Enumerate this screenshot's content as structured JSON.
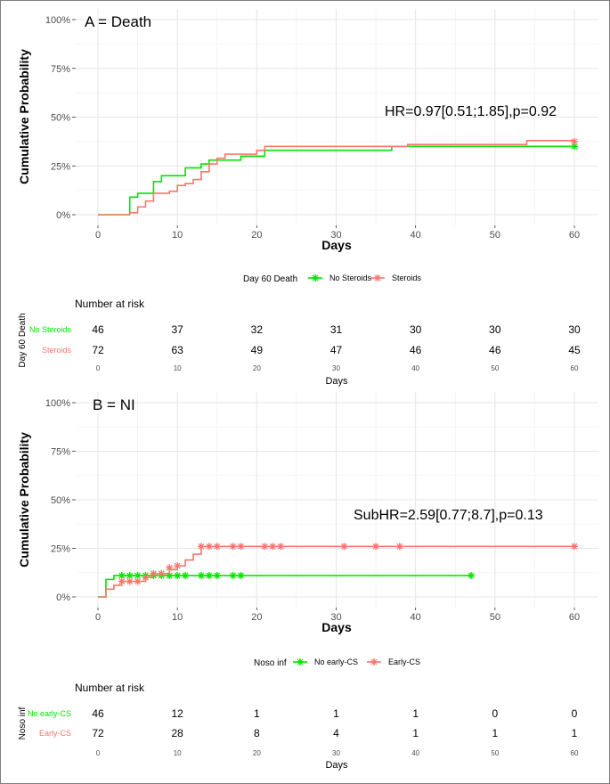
{
  "chart_data": [
    {
      "type": "line",
      "panel_label": "A = Death",
      "annotation": "HR=0.97[0.51;1.85],p=0.92",
      "xlabel": "Days",
      "ylabel": "Cumulative Probability",
      "xlim": [
        0,
        60
      ],
      "ylim": [
        0,
        1
      ],
      "x_ticks": [
        0,
        10,
        20,
        30,
        40,
        50,
        60
      ],
      "y_ticks": [
        "0%",
        "25%",
        "50%",
        "75%",
        "100%"
      ],
      "legend_title": "Day 60 Death",
      "colors": {
        "green": "#00e600",
        "red": "#f8766d"
      },
      "series": [
        {
          "name": "No Steroids",
          "color": "#00e600",
          "steps": [
            [
              0,
              0
            ],
            [
              4,
              0.09
            ],
            [
              5,
              0.11
            ],
            [
              7,
              0.17
            ],
            [
              8,
              0.2
            ],
            [
              11,
              0.24
            ],
            [
              13,
              0.26
            ],
            [
              14,
              0.28
            ],
            [
              18,
              0.3
            ],
            [
              21,
              0.33
            ],
            [
              37,
              0.35
            ],
            [
              60,
              0.35
            ]
          ],
          "censors": [
            [
              60,
              0.35
            ]
          ]
        },
        {
          "name": "Steroids",
          "color": "#f8766d",
          "steps": [
            [
              0,
              0
            ],
            [
              4,
              0.01
            ],
            [
              5,
              0.04
            ],
            [
              6,
              0.07
            ],
            [
              7,
              0.11
            ],
            [
              9,
              0.12
            ],
            [
              10,
              0.15
            ],
            [
              11,
              0.16
            ],
            [
              12,
              0.18
            ],
            [
              13,
              0.22
            ],
            [
              14,
              0.26
            ],
            [
              15,
              0.29
            ],
            [
              16,
              0.31
            ],
            [
              20,
              0.33
            ],
            [
              21,
              0.35
            ],
            [
              39,
              0.36
            ],
            [
              54,
              0.38
            ],
            [
              60,
              0.38
            ]
          ],
          "censors": [
            [
              60,
              0.375
            ]
          ]
        }
      ],
      "risk_table": {
        "title": "Number at risk",
        "ylabel": "Day 60 Death",
        "xlabel": "Days",
        "times": [
          "0",
          "10",
          "20",
          "30",
          "40",
          "50",
          "60"
        ],
        "rows": [
          {
            "name": "No Steroids",
            "color": "#00e600",
            "values": [
              "46",
              "37",
              "32",
              "31",
              "30",
              "30",
              "30"
            ]
          },
          {
            "name": "Steroids",
            "color": "#f8766d",
            "values": [
              "72",
              "63",
              "49",
              "47",
              "46",
              "46",
              "45"
            ]
          }
        ]
      }
    },
    {
      "type": "line",
      "panel_label": "B = NI",
      "annotation": "SubHR=2.59[0.77;8.7],p=0.13",
      "xlabel": "Days",
      "ylabel": "Cumulative Probability",
      "xlim": [
        0,
        60
      ],
      "ylim": [
        0,
        1
      ],
      "x_ticks": [
        0,
        10,
        20,
        30,
        40,
        50,
        60
      ],
      "y_ticks": [
        "0%",
        "25%",
        "50%",
        "75%",
        "100%"
      ],
      "legend_title": "Noso inf",
      "colors": {
        "green": "#00e600",
        "red": "#f8766d"
      },
      "series": [
        {
          "name": "No early-CS",
          "color": "#00e600",
          "steps": [
            [
              0,
              0
            ],
            [
              1,
              0.09
            ],
            [
              2,
              0.11
            ],
            [
              47,
              0.11
            ]
          ],
          "censors": [
            [
              3,
              0.11
            ],
            [
              4,
              0.11
            ],
            [
              5,
              0.11
            ],
            [
              6,
              0.11
            ],
            [
              7,
              0.11
            ],
            [
              8,
              0.11
            ],
            [
              9,
              0.11
            ],
            [
              10,
              0.11
            ],
            [
              11,
              0.11
            ],
            [
              13,
              0.11
            ],
            [
              14,
              0.11
            ],
            [
              15,
              0.11
            ],
            [
              17,
              0.11
            ],
            [
              18,
              0.11
            ],
            [
              47,
              0.11
            ]
          ]
        },
        {
          "name": "Early-CS",
          "color": "#f8766d",
          "steps": [
            [
              0,
              0
            ],
            [
              1,
              0.04
            ],
            [
              2,
              0.06
            ],
            [
              3,
              0.08
            ],
            [
              6,
              0.1
            ],
            [
              7,
              0.12
            ],
            [
              9,
              0.14
            ],
            [
              10,
              0.16
            ],
            [
              11,
              0.19
            ],
            [
              12,
              0.22
            ],
            [
              13,
              0.26
            ],
            [
              60,
              0.26
            ]
          ],
          "censors": [
            [
              3,
              0.08
            ],
            [
              4,
              0.08
            ],
            [
              5,
              0.08
            ],
            [
              6,
              0.1
            ],
            [
              7,
              0.12
            ],
            [
              8,
              0.12
            ],
            [
              9,
              0.15
            ],
            [
              10,
              0.16
            ],
            [
              13,
              0.26
            ],
            [
              14,
              0.26
            ],
            [
              15,
              0.26
            ],
            [
              17,
              0.26
            ],
            [
              18,
              0.26
            ],
            [
              21,
              0.26
            ],
            [
              22,
              0.26
            ],
            [
              23,
              0.26
            ],
            [
              31,
              0.26
            ],
            [
              35,
              0.26
            ],
            [
              38,
              0.26
            ],
            [
              60,
              0.26
            ]
          ]
        }
      ],
      "risk_table": {
        "title": "Number at risk",
        "ylabel": "Noso inf",
        "xlabel": "Days",
        "times": [
          "0",
          "10",
          "20",
          "30",
          "40",
          "50",
          "60"
        ],
        "rows": [
          {
            "name": "No early-CS",
            "color": "#00e600",
            "values": [
              "46",
              "12",
              "1",
              "1",
              "1",
              "0",
              "0"
            ]
          },
          {
            "name": "Early-CS",
            "color": "#f8766d",
            "values": [
              "72",
              "28",
              "8",
              "4",
              "1",
              "1",
              "1"
            ]
          }
        ]
      }
    }
  ]
}
